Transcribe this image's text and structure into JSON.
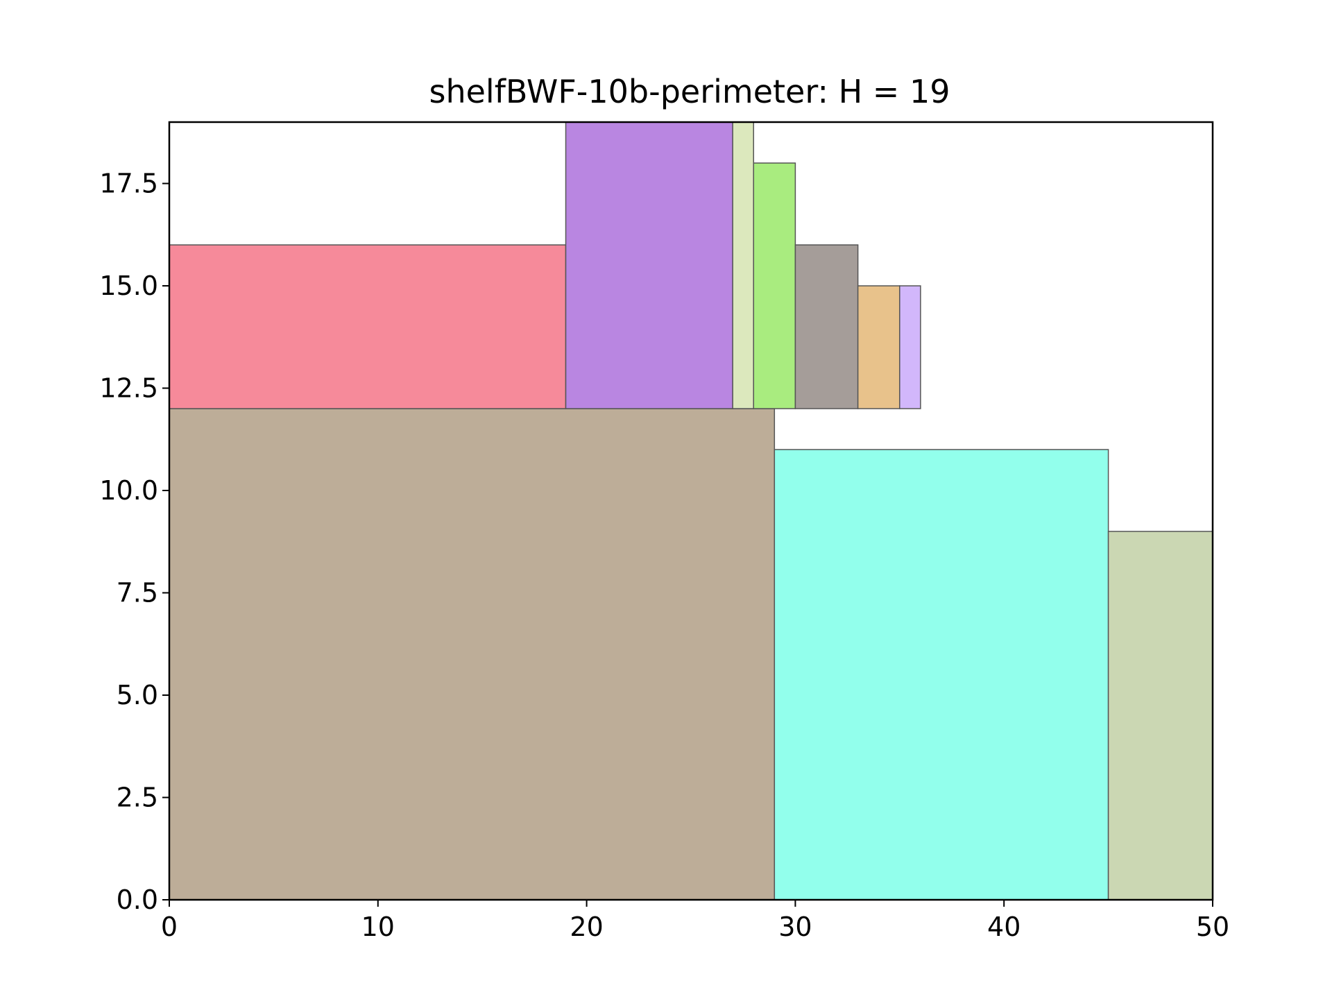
{
  "chart_data": {
    "type": "rectangle-packing",
    "title": "shelfBWF-10b-perimeter: H = 19",
    "xlabel": "",
    "ylabel": "",
    "xlim": [
      0,
      50
    ],
    "ylim": [
      0,
      19
    ],
    "x_ticks": [
      0,
      10,
      20,
      30,
      40,
      50
    ],
    "x_tick_labels": [
      "0",
      "10",
      "20",
      "30",
      "40",
      "50"
    ],
    "y_ticks": [
      0,
      2.5,
      5,
      7.5,
      10,
      12.5,
      15,
      17.5
    ],
    "y_tick_labels": [
      "0.0",
      "2.5",
      "5.0",
      "7.5",
      "10.0",
      "12.5",
      "15.0",
      "17.5"
    ],
    "grid": false,
    "rectangles": [
      {
        "x": 0,
        "y": 0,
        "w": 29,
        "h": 12,
        "color": "#bdad98"
      },
      {
        "x": 29,
        "y": 0,
        "w": 16,
        "h": 11,
        "color": "#92ffec"
      },
      {
        "x": 45,
        "y": 0,
        "w": 5,
        "h": 9,
        "color": "#cbd7b3"
      },
      {
        "x": 0,
        "y": 12,
        "w": 19,
        "h": 4,
        "color": "#f68a9a"
      },
      {
        "x": 19,
        "y": 12,
        "w": 8,
        "h": 7,
        "color": "#b986e1"
      },
      {
        "x": 27,
        "y": 12,
        "w": 1,
        "h": 7,
        "color": "#dce8bd"
      },
      {
        "x": 28,
        "y": 12,
        "w": 2,
        "h": 6,
        "color": "#a9ec7f"
      },
      {
        "x": 30,
        "y": 12,
        "w": 3,
        "h": 4,
        "color": "#a59d99"
      },
      {
        "x": 33,
        "y": 12,
        "w": 2,
        "h": 3,
        "color": "#e8c28b"
      },
      {
        "x": 35,
        "y": 12,
        "w": 1,
        "h": 3,
        "color": "#d2b7fb"
      }
    ]
  }
}
